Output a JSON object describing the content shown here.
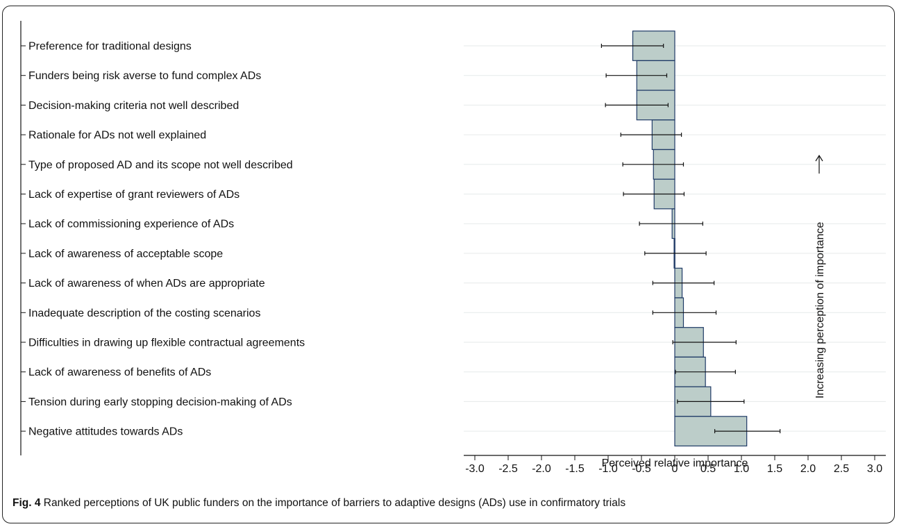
{
  "figure": {
    "label": "Fig. 4",
    "caption": "Ranked perceptions of UK public funders on the importance of barriers to adaptive designs (ADs) use in confirmatory trials"
  },
  "colors": {
    "bar_fill": "#bccdc9",
    "bar_stroke": "#1f3a66",
    "grid": "#e6eaea",
    "errorbar": "#111111"
  },
  "chart_data": {
    "type": "bar",
    "orientation": "horizontal",
    "xlabel": "Perceived relative importance",
    "ylabel": "",
    "xlim": [
      -3.0,
      3.0
    ],
    "x_ticks": [
      "-3.0",
      "-2.5",
      "-2.0",
      "-1.5",
      "-1.0",
      "-0.5",
      "0",
      "0.5",
      "1.0",
      "1.5",
      "2.0",
      "2.5",
      "3.0"
    ],
    "grid": true,
    "annotation": "Increasing perception of importance",
    "categories": [
      "Preference for traditional designs",
      "Funders being risk averse to fund complex ADs",
      "Decision-making criteria not well described",
      "Rationale for ADs not well explained",
      "Type of proposed AD and its scope not well described",
      "Lack of expertise of grant reviewers of ADs",
      "Lack of commissioning experience of ADs",
      "Lack of awareness of acceptable scope",
      "Lack of awareness of when ADs are appropriate",
      "Inadequate description of the costing scenarios",
      "Difficulties in drawing up flexible contractual agreements",
      "Lack of awareness of benefits of ADs",
      "Tension during early stopping decision-making of ADs",
      "Negative attitudes towards ADs"
    ],
    "series": [
      {
        "values": [
          -0.63,
          -0.57,
          -0.57,
          -0.34,
          -0.32,
          -0.31,
          -0.04,
          -0.01,
          0.11,
          0.13,
          0.43,
          0.46,
          0.54,
          1.08
        ],
        "ci_low": [
          -1.1,
          -1.03,
          -1.04,
          -0.81,
          -0.78,
          -0.77,
          -0.53,
          -0.45,
          -0.33,
          -0.33,
          -0.03,
          0.01,
          0.04,
          0.6
        ],
        "ci_high": [
          -0.17,
          -0.12,
          -0.1,
          0.1,
          0.13,
          0.14,
          0.42,
          0.47,
          0.59,
          0.62,
          0.92,
          0.91,
          1.04,
          1.58
        ]
      }
    ]
  }
}
